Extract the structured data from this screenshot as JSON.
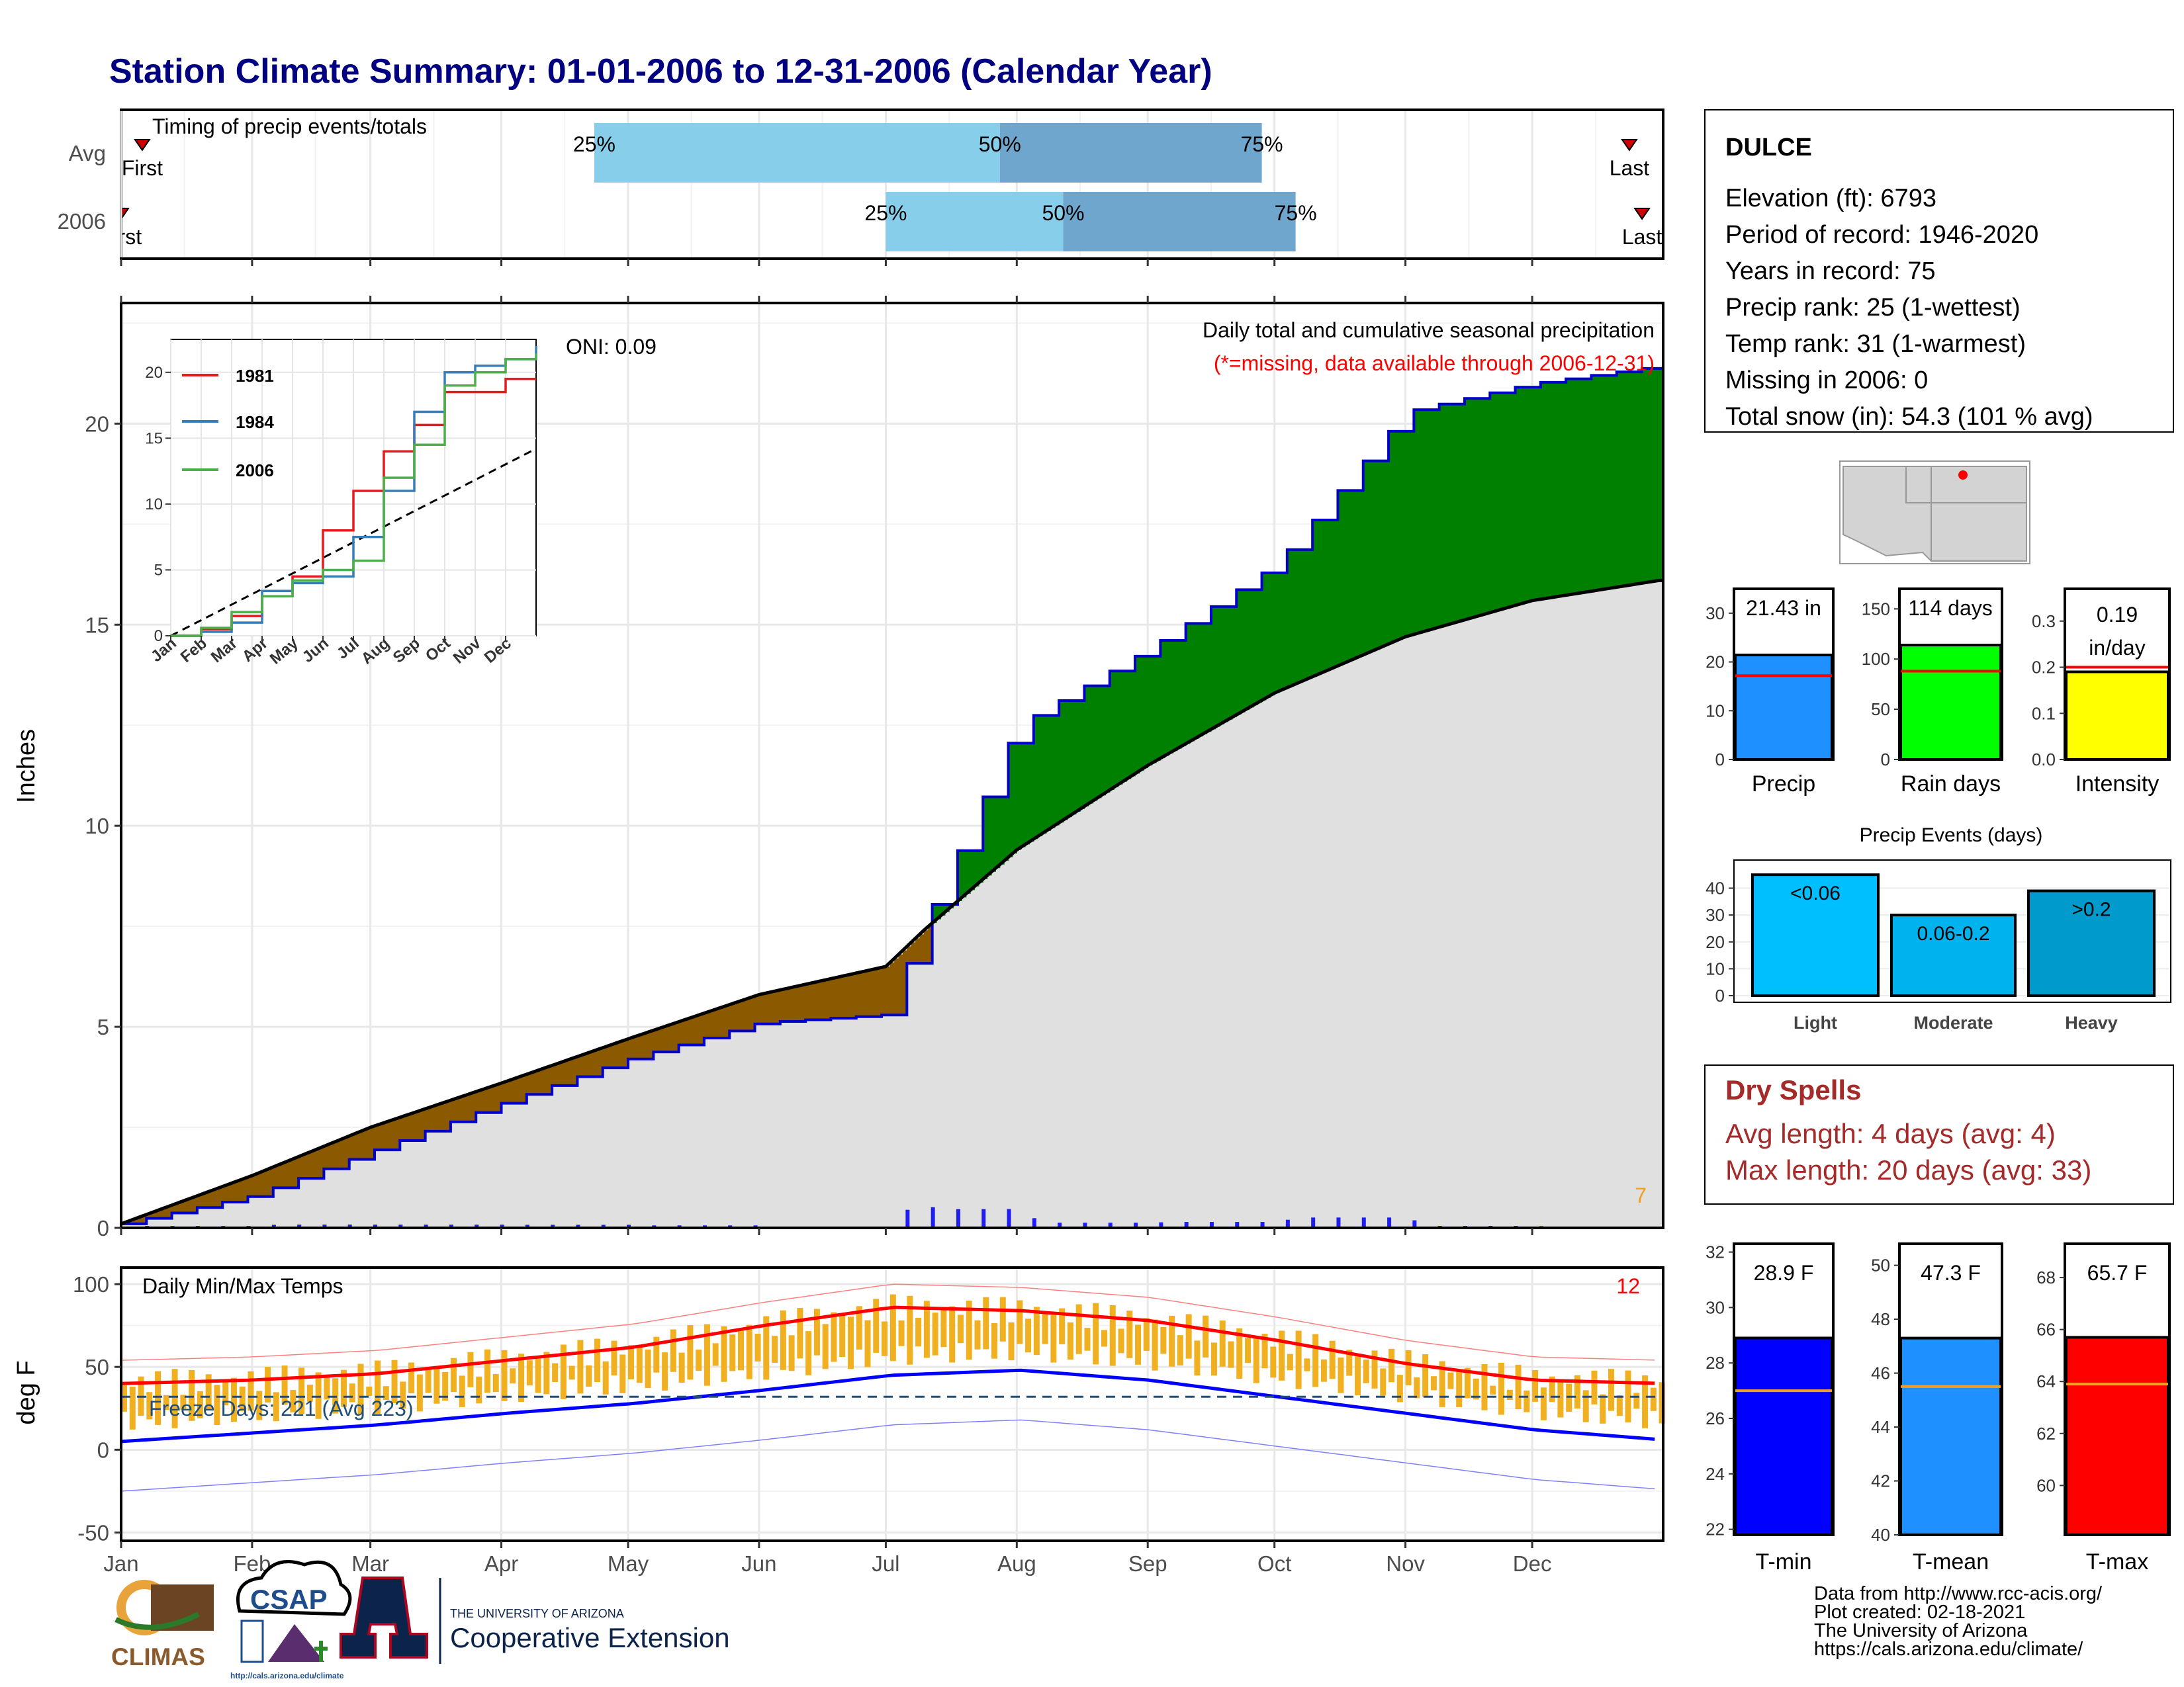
{
  "title": "Station Climate Summary: 01-01-2006 to 12-31-2006 (Calendar Year)",
  "colors": {
    "title": "#000080",
    "pct_light": "#87ceeb",
    "pct_dark": "#6fa6cd",
    "cum_year": "#0000cc",
    "above_avg_fill": "#008000",
    "below_avg_fill": "#8b5a00",
    "avg_fill": "#e0e0e0",
    "daily_bar": "#1e1ef0",
    "tmax_line": "#ff0000",
    "tmin_line": "#0000ff",
    "temp_bar": "#f0b020",
    "dry_spells": "#a52a2a"
  },
  "timing": {
    "title": "Timing of precip events/totals",
    "rows": [
      {
        "label": "Avg",
        "first_label": "First",
        "last_label": "Last",
        "p25": "2006-04-23",
        "p50": "2006-07-28",
        "p75": "2006-09-28",
        "first": "2006-01-06",
        "last": "2006-12-24"
      },
      {
        "label": "2006",
        "first_label": "First",
        "last_label": "Last",
        "p25": "2006-07-01",
        "p50": "2006-08-12",
        "p75": "2006-10-06",
        "first": "2006-01-01",
        "last": "2006-12-27"
      }
    ],
    "p25_label": "25%",
    "p50_label": "50%",
    "p75_label": "75%"
  },
  "precip_panel": {
    "title": "Daily total and cumulative seasonal precipitation",
    "subtitle": "(*=missing, data available through 2006-12-31)",
    "oni": "ONI: 0.09",
    "ylabel": "Inches",
    "corner_count": "7",
    "inset": {
      "series": [
        {
          "name": "1981",
          "color": "#e41a1c"
        },
        {
          "name": "1984",
          "color": "#377eb8"
        },
        {
          "name": "2006",
          "color": "#4daf4a"
        }
      ],
      "months": [
        "Jan",
        "Feb",
        "Mar",
        "Apr",
        "May",
        "Jun",
        "Jul",
        "Aug",
        "Sep",
        "Oct",
        "Nov",
        "Dec"
      ]
    }
  },
  "temp_panel": {
    "title": "Daily Min/Max Temps",
    "ylabel": "deg F",
    "corner_count": "12",
    "freeze_text": "Freeze Days: 221 (Avg 223)"
  },
  "months": [
    "Jan",
    "Feb",
    "Mar",
    "Apr",
    "May",
    "Jun",
    "Jul",
    "Aug",
    "Sep",
    "Oct",
    "Nov",
    "Dec"
  ],
  "station": {
    "name": "DULCE",
    "lines": [
      "Elevation (ft): 6793",
      "Period of record: 1946-2020",
      "Years in record: 75",
      "Precip rank: 25 (1-wettest)",
      "Temp rank: 31 (1-warmest)",
      "Missing in 2006: 0",
      "Total snow (in): 54.3 (101 % avg)"
    ]
  },
  "dry_spells": {
    "title": "Dry Spells",
    "avg_line": "Avg length: 4 days (avg: 4)",
    "max_line": "Max length: 20 days (avg: 33)"
  },
  "precip_events_title": "Precip Events (days)",
  "footer": {
    "lines": [
      "Data from http://www.rcc-acis.org/",
      "Plot created: 02-18-2021",
      "The University of Arizona",
      "https://cals.arizona.edu/climate/"
    ],
    "climas": "CLIMAS",
    "csap": "CSAP",
    "csap_url": "http://cals.arizona.edu/climate",
    "ua_line1": "THE UNIVERSITY OF ARIZONA",
    "ua_line2": "Cooperative Extension"
  },
  "chart_data": [
    {
      "type": "area",
      "name": "cumulative precipitation",
      "ylabel": "Inches",
      "ylim": [
        0,
        23
      ],
      "x": [
        "2006-01-01",
        "2006-02-01",
        "2006-03-01",
        "2006-04-01",
        "2006-05-01",
        "2006-06-01",
        "2006-07-01",
        "2006-07-10",
        "2006-08-01",
        "2006-09-01",
        "2006-10-01",
        "2006-11-01",
        "2006-12-01",
        "2006-12-31"
      ],
      "series": [
        {
          "name": "2006",
          "values": [
            0.1,
            0.8,
            1.9,
            3.1,
            4.2,
            5.1,
            5.3,
            7.6,
            12.5,
            14.4,
            16.5,
            20.3,
            21.0,
            21.43
          ]
        },
        {
          "name": "Avg",
          "values": [
            0.1,
            1.3,
            2.5,
            3.6,
            4.7,
            5.8,
            6.5,
            7.4,
            9.4,
            11.5,
            13.3,
            14.7,
            15.6,
            16.1
          ]
        }
      ]
    },
    {
      "type": "line",
      "name": "inset cumulative",
      "ylim": [
        0,
        21
      ],
      "categories": [
        "Jan",
        "Feb",
        "Mar",
        "Apr",
        "May",
        "Jun",
        "Jul",
        "Aug",
        "Sep",
        "Oct",
        "Nov",
        "Dec",
        "end"
      ],
      "series": [
        {
          "name": "1981",
          "values": [
            0,
            0.5,
            1.5,
            3,
            4.5,
            8,
            11,
            14,
            16,
            18.5,
            18.5,
            19.5,
            19.5
          ]
        },
        {
          "name": "1984",
          "values": [
            0,
            0.3,
            1,
            3.4,
            4,
            4.5,
            7.5,
            11,
            17,
            20,
            20.5,
            21,
            22
          ]
        },
        {
          "name": "2006",
          "values": [
            0,
            0.6,
            1.8,
            3,
            4.2,
            5,
            5.7,
            12,
            14.5,
            19,
            20,
            21,
            21.43
          ]
        }
      ]
    },
    {
      "type": "line",
      "name": "daily temperatures",
      "ylabel": "deg F",
      "ylim": [
        -50,
        100
      ],
      "categories": [
        "Jan",
        "Feb",
        "Mar",
        "Apr",
        "May",
        "Jun",
        "Jul",
        "Aug",
        "Sep",
        "Oct",
        "Nov",
        "Dec",
        "end"
      ],
      "series": [
        {
          "name": "Avg Tmax",
          "values": [
            40,
            42,
            46,
            54,
            62,
            75,
            86,
            84,
            78,
            66,
            52,
            42,
            40
          ]
        },
        {
          "name": "Avg Tmin",
          "values": [
            5,
            10,
            15,
            22,
            28,
            36,
            45,
            48,
            42,
            32,
            22,
            12,
            6
          ]
        },
        {
          "name": "Freeze line",
          "values": [
            32,
            32,
            32,
            32,
            32,
            32,
            32,
            32,
            32,
            32,
            32,
            32,
            32
          ]
        }
      ]
    },
    {
      "type": "bar",
      "name": "annual totals",
      "categories": [
        "Precip",
        "Rain days",
        "Intensity"
      ],
      "values": [
        21.43,
        114,
        0.19
      ],
      "averages": [
        17.2,
        88,
        0.2
      ],
      "labels": [
        "21.43 in",
        "114 days",
        "0.19 in/day"
      ],
      "ylims": [
        [
          0,
          35
        ],
        [
          0,
          170
        ],
        [
          0,
          0.37
        ]
      ]
    },
    {
      "type": "bar",
      "name": "Precip Events (days)",
      "categories": [
        "Light",
        "Moderate",
        "Heavy"
      ],
      "values": [
        45,
        30,
        39
      ],
      "labels": [
        "<0.06",
        "0.06-0.2",
        ">0.2"
      ],
      "ylim": [
        0,
        48
      ]
    },
    {
      "type": "bar",
      "name": "temperature means",
      "categories": [
        "T-min",
        "T-mean",
        "T-max"
      ],
      "values": [
        28.9,
        47.3,
        65.7
      ],
      "averages": [
        27.0,
        45.5,
        63.9
      ],
      "labels": [
        "28.9 F",
        "47.3 F",
        "65.7 F"
      ],
      "ylims": [
        [
          21.8,
          32.3
        ],
        [
          40,
          50.8
        ],
        [
          58.1,
          69.3
        ]
      ]
    }
  ]
}
